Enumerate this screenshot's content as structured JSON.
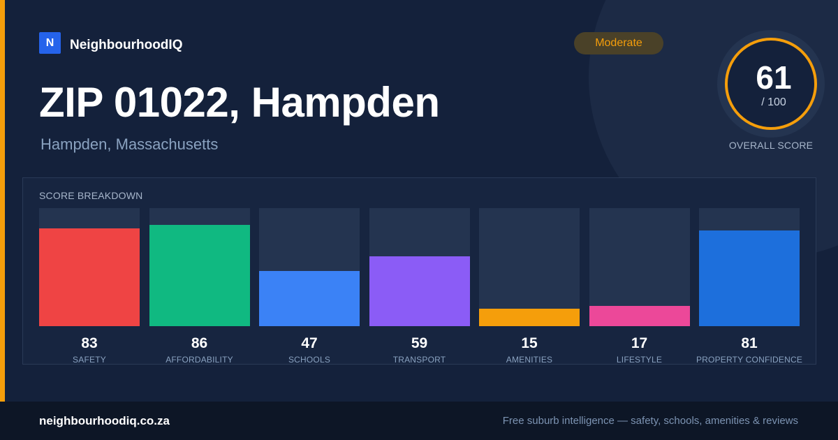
{
  "brand": {
    "logo_letter": "N",
    "name": "NeighbourhoodIQ",
    "logo_color": "#2563eb"
  },
  "header": {
    "title": "ZIP 01022, Hampden",
    "subtitle": "Hampden, Massachusetts",
    "badge": "Moderate"
  },
  "overall": {
    "score": "61",
    "max": "/ 100",
    "label": "OVERALL SCORE",
    "ring_color": "#f59e0b",
    "fraction": 0.61
  },
  "breakdown": {
    "title": "SCORE BREAKDOWN",
    "items": [
      {
        "label": "SAFETY",
        "value": 83,
        "color": "#ef4444"
      },
      {
        "label": "AFFORDABILITY",
        "value": 86,
        "color": "#10b981"
      },
      {
        "label": "SCHOOLS",
        "value": 47,
        "color": "#3b82f6"
      },
      {
        "label": "TRANSPORT",
        "value": 59,
        "color": "#8b5cf6"
      },
      {
        "label": "AMENITIES",
        "value": 15,
        "color": "#f59e0b"
      },
      {
        "label": "LIFESTYLE",
        "value": 17,
        "color": "#ec4899"
      },
      {
        "label": "PROPERTY CONFIDENCE",
        "value": 81,
        "color": "#1d6fdc"
      }
    ]
  },
  "footer": {
    "domain": "neighbourhoodiq.co.za",
    "tagline": "Free suburb intelligence — safety, schools, amenities & reviews"
  }
}
